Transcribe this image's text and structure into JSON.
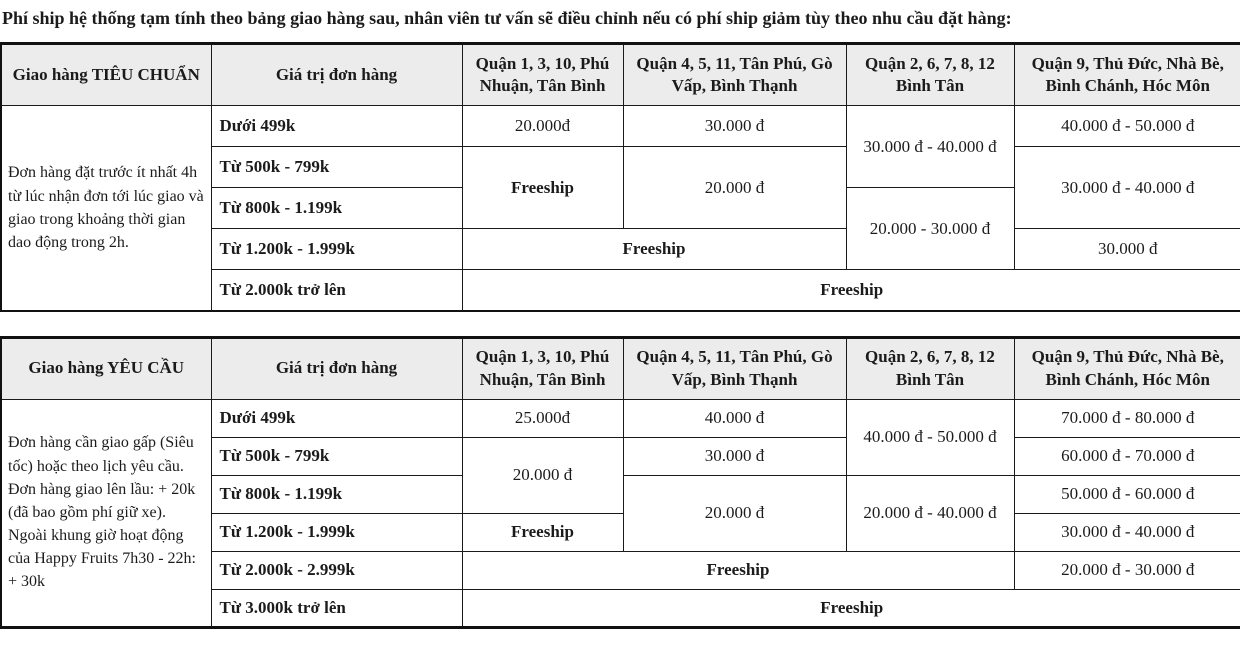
{
  "colors": {
    "header_bg": "#ececec",
    "border": "#111111",
    "text": "#1b1b1b"
  },
  "intro": "Phí ship hệ thống tạm tính theo bảng giao hàng sau, nhân viên tư vấn sẽ điều chỉnh nếu có phí ship giảm tùy theo nhu cầu đặt hàng:",
  "tables": [
    {
      "type_header": "Giao hàng TIÊU CHUẨN",
      "value_header": "Giá trị đơn hàng",
      "districts": [
        "Quận 1, 3, 10, Phú Nhuận, Tân Bình",
        "Quận 4, 5, 11, Tân Phú, Gò Vấp, Bình Thạnh",
        "Quận 2, 6, 7, 8, 12 Bình Tân",
        "Quận 9, Thủ Đức, Nhà Bè, Bình Chánh, Hóc Môn"
      ],
      "description": "Đơn hàng đặt trước ít nhất 4h từ lúc nhận đơn tới lúc giao và giao trong khoảng thời gian dao động trong 2h.",
      "rows": [
        {
          "label": "Dưới 499k",
          "values": [
            "20.000đ",
            "30.000 đ",
            "30.000 đ - 40.000 đ",
            "40.000 đ - 50.000 đ"
          ]
        },
        {
          "label": "Từ 500k - 799k",
          "values": [
            "Freeship",
            "20.000 đ",
            "30.000 đ - 40.000 đ"
          ]
        },
        {
          "label": "Từ 800k - 1.199k",
          "values": [
            "20.000 - 30.000 đ"
          ]
        },
        {
          "label": "Từ 1.200k - 1.999k",
          "values": [
            "Freeship",
            "30.000 đ"
          ]
        },
        {
          "label": "Từ 2.000k trở lên",
          "values": [
            "Freeship"
          ]
        }
      ]
    },
    {
      "type_header": "Giao hàng YÊU CẦU",
      "value_header": "Giá trị đơn hàng",
      "districts": [
        "Quận 1, 3, 10, Phú Nhuận, Tân Bình",
        "Quận 4, 5, 11, Tân Phú, Gò Vấp, Bình Thạnh",
        "Quận 2, 6, 7, 8, 12 Bình Tân",
        "Quận 9, Thủ Đức, Nhà Bè, Bình Chánh, Hóc Môn"
      ],
      "description": "Đơn hàng cần giao gấp (Siêu tốc) hoặc theo lịch yêu cầu.\nĐơn hàng giao lên lầu: + 20k (đã bao gồm phí giữ xe). Ngoài khung giờ hoạt động của Happy Fruits 7h30 - 22h: + 30k",
      "rows": [
        {
          "label": "Dưới 499k",
          "values": [
            "25.000đ",
            "40.000 đ",
            "40.000 đ - 50.000 đ",
            "70.000 đ - 80.000 đ"
          ]
        },
        {
          "label": "Từ 500k - 799k",
          "values": [
            "20.000 đ",
            "30.000 đ",
            "60.000 đ - 70.000 đ"
          ]
        },
        {
          "label": "Từ 800k - 1.199k",
          "values": [
            "20.000 đ",
            "20.000 đ - 40.000 đ",
            "50.000 đ - 60.000 đ"
          ]
        },
        {
          "label": "Từ 1.200k - 1.999k",
          "values": [
            "Freeship",
            "30.000 đ - 40.000 đ"
          ]
        },
        {
          "label": "Từ 2.000k - 2.999k",
          "values": [
            "Freeship",
            "20.000 đ - 30.000 đ"
          ]
        },
        {
          "label": "Từ 3.000k trở lên",
          "values": [
            "Freeship"
          ]
        }
      ]
    }
  ]
}
